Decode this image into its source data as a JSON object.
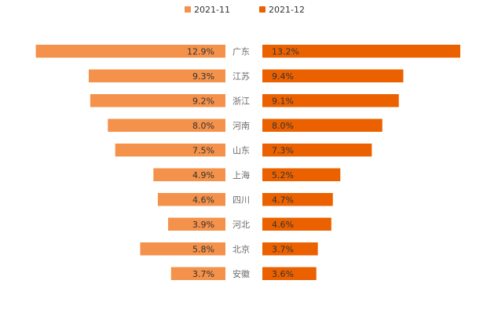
{
  "chart_data": {
    "type": "bar",
    "orientation": "horizontal-butterfly",
    "categories": [
      "广东",
      "江苏",
      "浙江",
      "河南",
      "山东",
      "上海",
      "四川",
      "河北",
      "北京",
      "安徽"
    ],
    "series": [
      {
        "name": "2021-11",
        "values": [
          12.9,
          9.3,
          9.2,
          8.0,
          7.5,
          4.9,
          4.6,
          3.9,
          5.8,
          3.7
        ],
        "labels": [
          "12.9%",
          "9.3%",
          "9.2%",
          "8.0%",
          "7.5%",
          "4.9%",
          "4.6%",
          "3.9%",
          "5.8%",
          "3.7%"
        ],
        "color": "#f4914a"
      },
      {
        "name": "2021-12",
        "values": [
          13.2,
          9.4,
          9.1,
          8.0,
          7.3,
          5.2,
          4.7,
          4.6,
          3.7,
          3.6
        ],
        "labels": [
          "13.2%",
          "9.4%",
          "9.1%",
          "8.0%",
          "7.3%",
          "5.2%",
          "4.7%",
          "4.6%",
          "3.7%",
          "3.6%"
        ],
        "color": "#eb6100"
      }
    ],
    "unit": "%",
    "title": "",
    "xlabel": "",
    "ylabel": "",
    "xlim": [
      0,
      13.2
    ],
    "legend_position": "top-center",
    "grid": false
  }
}
